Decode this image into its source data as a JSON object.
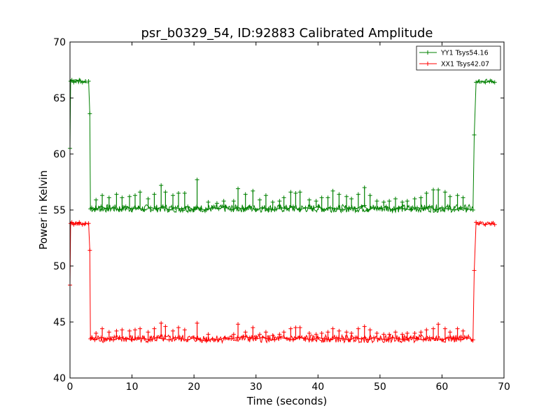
{
  "chart_data": {
    "type": "line",
    "title": "psr_b0329_54, ID:92883 Calibrated Amplitude",
    "xlabel": "Time (seconds)",
    "ylabel": "Power in Kelvin",
    "xlim": [
      0,
      70
    ],
    "ylim": [
      40,
      70
    ],
    "xticks": [
      "0",
      "10",
      "20",
      "30",
      "40",
      "50",
      "60",
      "70"
    ],
    "yticks": [
      "40",
      "45",
      "50",
      "55",
      "60",
      "65",
      "70"
    ],
    "grid": false,
    "legend_position": "top-right",
    "series": [
      {
        "name": "YY1 Tsys54.16",
        "color": "#008000",
        "marker": "+",
        "x": [
          0.0,
          0.1,
          0.3,
          0.6,
          1.0,
          1.5,
          2.0,
          2.5,
          3.0,
          3.2,
          3.3,
          3.5,
          4.0,
          5.0,
          6.0,
          7.0,
          8.0,
          9.0,
          10.0,
          11.0,
          12.0,
          13.0,
          14.0,
          15.0,
          16.0,
          17.0,
          18.0,
          19.0,
          20.0,
          20.5,
          21.0,
          22.0,
          23.0,
          24.0,
          25.0,
          26.0,
          27.0,
          28.0,
          29.0,
          30.0,
          31.0,
          32.0,
          33.0,
          34.0,
          35.0,
          36.0,
          37.0,
          38.0,
          39.0,
          40.0,
          41.0,
          42.0,
          43.0,
          44.0,
          45.0,
          46.0,
          47.0,
          47.5,
          48.0,
          49.0,
          50.0,
          51.0,
          52.0,
          53.0,
          54.0,
          55.0,
          56.0,
          57.0,
          58.0,
          59.0,
          60.0,
          61.0,
          62.0,
          63.0,
          64.0,
          65.0,
          65.2,
          65.5,
          66.0,
          67.0,
          68.0,
          68.5
        ],
        "y": [
          60.5,
          66.5,
          66.6,
          66.4,
          66.5,
          66.6,
          66.4,
          66.5,
          66.5,
          63.6,
          55.1,
          55.2,
          55.0,
          55.3,
          55.1,
          55.2,
          55.0,
          55.3,
          55.1,
          55.2,
          55.0,
          55.2,
          55.1,
          55.3,
          55.0,
          55.2,
          55.1,
          55.3,
          55.0,
          55.2,
          55.1,
          55.0,
          55.2,
          55.1,
          55.3,
          55.0,
          55.2,
          55.1,
          55.3,
          55.0,
          55.2,
          55.1,
          55.0,
          55.2,
          55.1,
          55.3,
          55.0,
          55.2,
          55.1,
          55.3,
          55.0,
          55.2,
          55.1,
          55.0,
          55.2,
          55.1,
          55.3,
          55.4,
          55.0,
          55.2,
          55.1,
          55.3,
          55.0,
          55.2,
          55.1,
          55.0,
          55.2,
          55.1,
          55.3,
          55.0,
          55.2,
          55.1,
          55.0,
          55.2,
          55.1,
          55.0,
          61.7,
          66.4,
          66.5,
          66.4,
          66.5,
          66.4
        ]
      },
      {
        "name": "XX1 Tsys42.07",
        "color": "#ff0000",
        "marker": "+",
        "x": [
          0.0,
          0.1,
          0.3,
          0.6,
          1.0,
          1.5,
          2.0,
          2.5,
          3.0,
          3.2,
          3.3,
          3.5,
          4.0,
          5.0,
          6.0,
          7.0,
          8.0,
          9.0,
          10.0,
          11.0,
          12.0,
          13.0,
          14.0,
          15.0,
          16.0,
          17.0,
          18.0,
          19.0,
          20.0,
          20.5,
          21.0,
          22.0,
          23.0,
          24.0,
          25.0,
          26.0,
          27.0,
          28.0,
          29.0,
          30.0,
          31.0,
          32.0,
          33.0,
          34.0,
          35.0,
          36.0,
          37.0,
          38.0,
          39.0,
          40.0,
          41.0,
          42.0,
          43.0,
          44.0,
          45.0,
          46.0,
          47.0,
          47.5,
          48.0,
          49.0,
          50.0,
          51.0,
          52.0,
          53.0,
          54.0,
          55.0,
          56.0,
          57.0,
          58.0,
          59.0,
          60.0,
          61.0,
          62.0,
          63.0,
          64.0,
          65.0,
          65.2,
          65.5,
          66.0,
          67.0,
          68.0,
          68.5
        ],
        "y": [
          48.3,
          53.8,
          53.9,
          53.7,
          53.8,
          53.9,
          53.7,
          53.8,
          53.8,
          51.4,
          43.5,
          43.6,
          43.4,
          43.6,
          43.5,
          43.4,
          43.6,
          43.5,
          43.4,
          43.6,
          43.5,
          43.4,
          43.6,
          43.5,
          43.4,
          43.6,
          43.5,
          43.4,
          43.6,
          43.5,
          43.4,
          43.3,
          43.5,
          43.4,
          43.6,
          43.5,
          43.6,
          43.7,
          43.6,
          43.5,
          43.6,
          43.5,
          43.4,
          43.6,
          43.5,
          43.4,
          43.6,
          43.5,
          43.4,
          43.6,
          43.5,
          43.4,
          43.6,
          43.5,
          43.4,
          43.6,
          43.5,
          43.6,
          43.4,
          43.6,
          43.5,
          43.4,
          43.6,
          43.5,
          43.4,
          43.6,
          43.5,
          43.4,
          43.6,
          43.5,
          43.4,
          43.6,
          43.5,
          43.4,
          43.6,
          43.4,
          49.6,
          53.9,
          53.8,
          53.7,
          53.8,
          53.7
        ]
      }
    ],
    "spikes": [
      {
        "series": 0,
        "x": [
          4.2,
          5.2,
          6.3,
          7.5,
          8.4,
          9.6,
          10.5,
          11.3,
          12.6,
          13.6,
          14.7,
          15.4,
          16.6,
          17.5,
          18.5,
          20.5,
          22.3,
          23.7,
          24.8,
          26.4,
          27.1,
          28.3,
          29.5,
          30.6,
          31.6,
          32.7,
          33.8,
          34.5,
          35.6,
          36.4,
          37.1,
          38.6,
          39.7,
          40.6,
          41.6,
          42.4,
          43.4,
          44.6,
          45.4,
          46.5,
          47.5,
          48.4,
          49.5,
          50.6,
          51.5,
          52.5,
          53.6,
          54.4,
          55.6,
          56.6,
          57.5,
          58.6,
          59.4,
          60.5,
          61.3,
          62.5,
          63.4
        ],
        "y": [
          55.9,
          56.3,
          56.1,
          56.4,
          56.1,
          56.2,
          56.3,
          56.6,
          56.0,
          56.4,
          57.2,
          56.6,
          56.3,
          56.5,
          56.5,
          57.7,
          55.7,
          55.6,
          55.8,
          55.8,
          56.9,
          56.4,
          56.7,
          55.9,
          56.3,
          55.7,
          55.8,
          56.1,
          56.6,
          56.5,
          56.6,
          55.9,
          55.8,
          56.1,
          56.1,
          56.7,
          56.4,
          56.2,
          56.0,
          56.4,
          57.0,
          56.3,
          55.8,
          55.7,
          55.8,
          56.0,
          55.7,
          55.8,
          56.0,
          56.1,
          56.5,
          56.8,
          56.8,
          56.6,
          56.2,
          56.3,
          56.1
        ]
      },
      {
        "series": 1,
        "x": [
          4.2,
          5.2,
          6.3,
          7.5,
          8.4,
          9.6,
          10.5,
          11.3,
          12.6,
          13.6,
          14.7,
          15.4,
          16.6,
          17.5,
          18.5,
          20.5,
          22.3,
          26.4,
          27.1,
          28.3,
          29.5,
          30.6,
          31.6,
          32.7,
          33.8,
          34.5,
          35.6,
          36.4,
          37.1,
          38.6,
          39.7,
          40.6,
          41.6,
          42.4,
          43.4,
          44.6,
          45.4,
          46.5,
          47.5,
          48.4,
          49.5,
          50.6,
          51.5,
          52.5,
          53.6,
          54.4,
          55.6,
          56.6,
          57.5,
          58.6,
          59.4,
          60.5,
          61.3,
          62.5,
          63.4
        ],
        "y": [
          44.0,
          44.4,
          44.1,
          44.2,
          44.3,
          44.2,
          44.3,
          44.4,
          44.1,
          44.4,
          44.9,
          44.6,
          44.2,
          44.5,
          44.3,
          44.9,
          43.9,
          43.9,
          44.8,
          44.1,
          44.5,
          43.9,
          44.1,
          43.8,
          43.9,
          44.1,
          44.4,
          44.5,
          44.5,
          44.0,
          43.9,
          44.0,
          44.1,
          44.4,
          44.2,
          44.1,
          44.0,
          44.4,
          44.6,
          44.3,
          44.0,
          43.9,
          43.9,
          44.1,
          43.9,
          44.0,
          44.0,
          44.1,
          44.3,
          44.4,
          44.8,
          44.4,
          44.1,
          44.4,
          44.2
        ]
      }
    ]
  }
}
